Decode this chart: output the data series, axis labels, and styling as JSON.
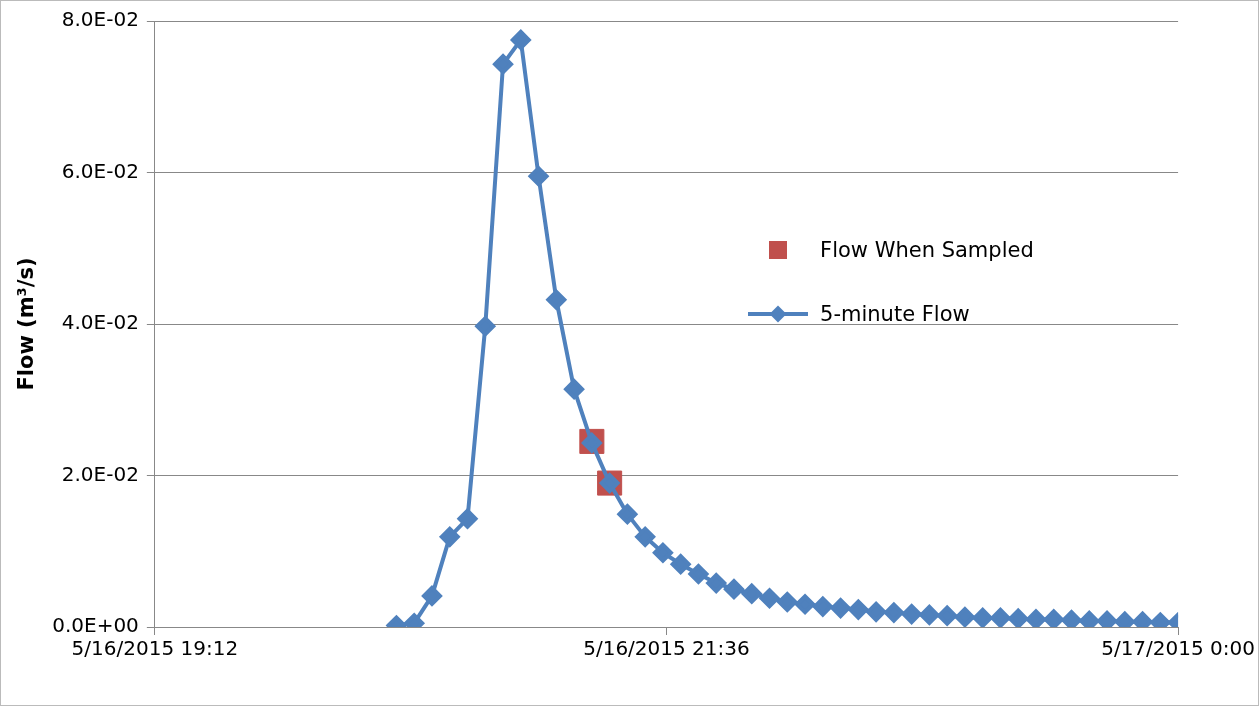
{
  "chart_data": {
    "type": "line",
    "ylabel": "Flow (m³/s)",
    "legend": "right",
    "grid": "y",
    "xlim": [
      "2015-05-16T19:12",
      "2015-05-17T00:00"
    ],
    "xticks": [
      {
        "value": "2015-05-16T19:12",
        "label": "5/16/2015 19:12"
      },
      {
        "value": "2015-05-16T21:36",
        "label": "5/16/2015 21:36"
      },
      {
        "value": "2015-05-17T00:00",
        "label": "5/17/2015 0:00"
      }
    ],
    "ylim": [
      0,
      0.08
    ],
    "yticks": [
      {
        "value": 0,
        "label": "0.0E+00"
      },
      {
        "value": 0.02,
        "label": "2.0E-02"
      },
      {
        "value": 0.04,
        "label": "4.0E-02"
      },
      {
        "value": 0.06,
        "label": "6.0E-02"
      },
      {
        "value": 0.08,
        "label": "8.0E-02"
      }
    ],
    "series": [
      {
        "name": "Flow When Sampled",
        "type": "scatter",
        "marker": "square",
        "color": "#c0504d",
        "x": [
          "2015-05-16T21:15",
          "2015-05-16T21:20"
        ],
        "values": [
          0.0245,
          0.019
        ]
      },
      {
        "name": "5-minute Flow",
        "marker": "diamond",
        "color": "#4f81bd",
        "x": [
          "2015-05-16T20:20",
          "2015-05-16T20:25",
          "2015-05-16T20:30",
          "2015-05-16T20:35",
          "2015-05-16T20:40",
          "2015-05-16T20:45",
          "2015-05-16T20:50",
          "2015-05-16T20:55",
          "2015-05-16T21:00",
          "2015-05-16T21:05",
          "2015-05-16T21:10",
          "2015-05-16T21:15",
          "2015-05-16T21:20",
          "2015-05-16T21:25",
          "2015-05-16T21:30",
          "2015-05-16T21:35",
          "2015-05-16T21:40",
          "2015-05-16T21:45",
          "2015-05-16T21:50",
          "2015-05-16T21:55",
          "2015-05-16T22:00",
          "2015-05-16T22:05",
          "2015-05-16T22:10",
          "2015-05-16T22:15",
          "2015-05-16T22:20",
          "2015-05-16T22:25",
          "2015-05-16T22:30",
          "2015-05-16T22:35",
          "2015-05-16T22:40",
          "2015-05-16T22:45",
          "2015-05-16T22:50",
          "2015-05-16T22:55",
          "2015-05-16T23:00",
          "2015-05-16T23:05",
          "2015-05-16T23:10",
          "2015-05-16T23:15",
          "2015-05-16T23:20",
          "2015-05-16T23:25",
          "2015-05-16T23:30",
          "2015-05-16T23:35",
          "2015-05-16T23:40",
          "2015-05-16T23:45",
          "2015-05-16T23:50",
          "2015-05-16T23:55",
          "2015-05-17T00:00"
        ],
        "values": [
          0.0002,
          0.0005,
          0.0041,
          0.0119,
          0.0143,
          0.0397,
          0.0743,
          0.0775,
          0.0595,
          0.0432,
          0.0314,
          0.0243,
          0.019,
          0.0149,
          0.0119,
          0.0098,
          0.0083,
          0.007,
          0.0058,
          0.005,
          0.0044,
          0.0038,
          0.0033,
          0.003,
          0.0027,
          0.0025,
          0.0023,
          0.002,
          0.0019,
          0.0017,
          0.0016,
          0.0015,
          0.0013,
          0.0012,
          0.0012,
          0.0011,
          0.001,
          0.001,
          0.0009,
          0.0008,
          0.0008,
          0.0007,
          0.0007,
          0.0006,
          0.0006
        ]
      }
    ]
  }
}
